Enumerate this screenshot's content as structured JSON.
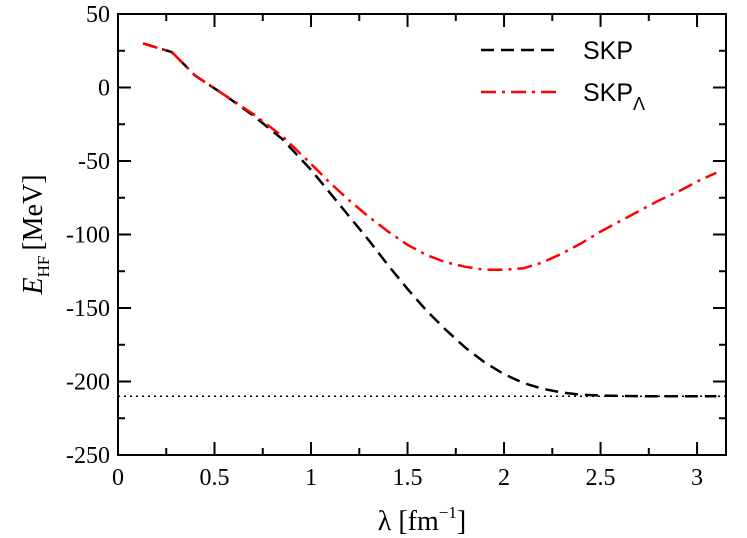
{
  "chart_data": {
    "type": "line",
    "title": "",
    "xlabel": {
      "symbol": "λ",
      "unit_prefix": "[fm",
      "unit_exponent": "−1",
      "unit_suffix": "]"
    },
    "ylabel": {
      "symbol": "E",
      "subscript": "HF",
      "unit": "[MeV]"
    },
    "xlim": [
      0,
      3.15
    ],
    "ylim": [
      -250,
      50
    ],
    "x_ticks": [
      0,
      0.5,
      1,
      1.5,
      2,
      2.5,
      3
    ],
    "x_tick_labels": [
      "0",
      "0.5",
      "1",
      "1.5",
      "2",
      "2.5",
      "3"
    ],
    "y_ticks": [
      50,
      0,
      -50,
      -100,
      -150,
      -200,
      -250
    ],
    "y_tick_labels": [
      "50",
      "0",
      "-50",
      "-100",
      "-150",
      "-200",
      "-250"
    ],
    "grid": false,
    "legend_position": "top-right",
    "reference_line": {
      "y": -210,
      "style": "dotted",
      "color": "#000000"
    },
    "series": [
      {
        "name": "SKP",
        "legend_label": "SKP",
        "legend_subscript": "",
        "color": "#000000",
        "dash": "dashed",
        "x": [
          0.13,
          0.28,
          0.4,
          0.55,
          0.7,
          0.85,
          1.0,
          1.1,
          1.2,
          1.3,
          1.4,
          1.5,
          1.6,
          1.7,
          1.8,
          1.9,
          2.0,
          2.1,
          2.2,
          2.3,
          2.4,
          2.5,
          2.6,
          2.7,
          2.8,
          2.9,
          3.0,
          3.1
        ],
        "y": [
          30,
          24,
          8,
          -5,
          -19,
          -35,
          -56,
          -72,
          -88,
          -104,
          -121,
          -137,
          -152,
          -165,
          -177,
          -187,
          -195,
          -201,
          -205,
          -207.5,
          -209,
          -209.5,
          -209.8,
          -210,
          -210,
          -210,
          -210,
          -210
        ]
      },
      {
        "name": "SKP_Lambda",
        "legend_label": "SKP",
        "legend_subscript": "Λ",
        "color": "#ff0000",
        "dash": "dashdot",
        "x": [
          0.13,
          0.28,
          0.4,
          0.55,
          0.7,
          0.85,
          1.0,
          1.1,
          1.2,
          1.3,
          1.4,
          1.5,
          1.6,
          1.7,
          1.8,
          1.9,
          2.0,
          2.1,
          2.2,
          2.3,
          2.4,
          2.5,
          2.6,
          2.7,
          2.8,
          2.9,
          3.0,
          3.1
        ],
        "y": [
          30,
          24,
          8,
          -5,
          -18,
          -33,
          -52,
          -65,
          -77,
          -88,
          -98,
          -107,
          -114,
          -119,
          -122,
          -124,
          -124,
          -123,
          -119,
          -113,
          -106,
          -98,
          -91,
          -84,
          -77,
          -71,
          -64,
          -58
        ]
      }
    ]
  }
}
